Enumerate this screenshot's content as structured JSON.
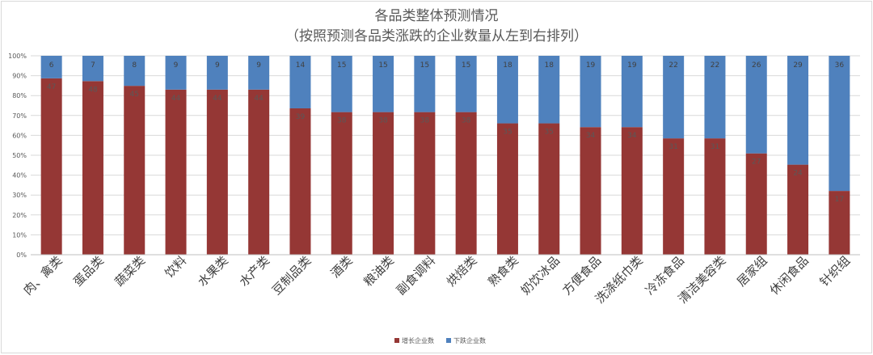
{
  "chart_data": {
    "type": "bar",
    "stacked": "percent",
    "title": "各品类整体预测情况",
    "subtitle": "（按照预测各品类涨跌的企业数量从左到右排列）",
    "categories": [
      "肉、禽类",
      "蛋品类",
      "蔬菜类",
      "饮料",
      "水果类",
      "水产类",
      "豆制品类",
      "酒类",
      "粮油类",
      "副食调料",
      "烘焙类",
      "熟食类",
      "奶饮冰品",
      "方便食品",
      "洗涤纸巾类",
      "冷冻食品",
      "清洁美容类",
      "居家组",
      "休闲食品",
      "针织组"
    ],
    "series": [
      {
        "name": "增长企业数",
        "color": "#953735",
        "values": [
          47,
          48,
          45,
          44,
          44,
          44,
          39,
          38,
          38,
          38,
          38,
          35,
          35,
          34,
          34,
          31,
          31,
          27,
          24,
          17
        ]
      },
      {
        "name": "下跌企业数",
        "color": "#4f81bd",
        "values": [
          6,
          7,
          8,
          9,
          9,
          9,
          14,
          15,
          15,
          15,
          15,
          18,
          18,
          19,
          19,
          22,
          22,
          26,
          29,
          36
        ]
      }
    ],
    "ylim": [
      0,
      100
    ],
    "yticks": [
      "0%",
      "10%",
      "20%",
      "30%",
      "40%",
      "50%",
      "60%",
      "70%",
      "80%",
      "90%",
      "100%"
    ],
    "grid": true,
    "legend": "bottom"
  }
}
